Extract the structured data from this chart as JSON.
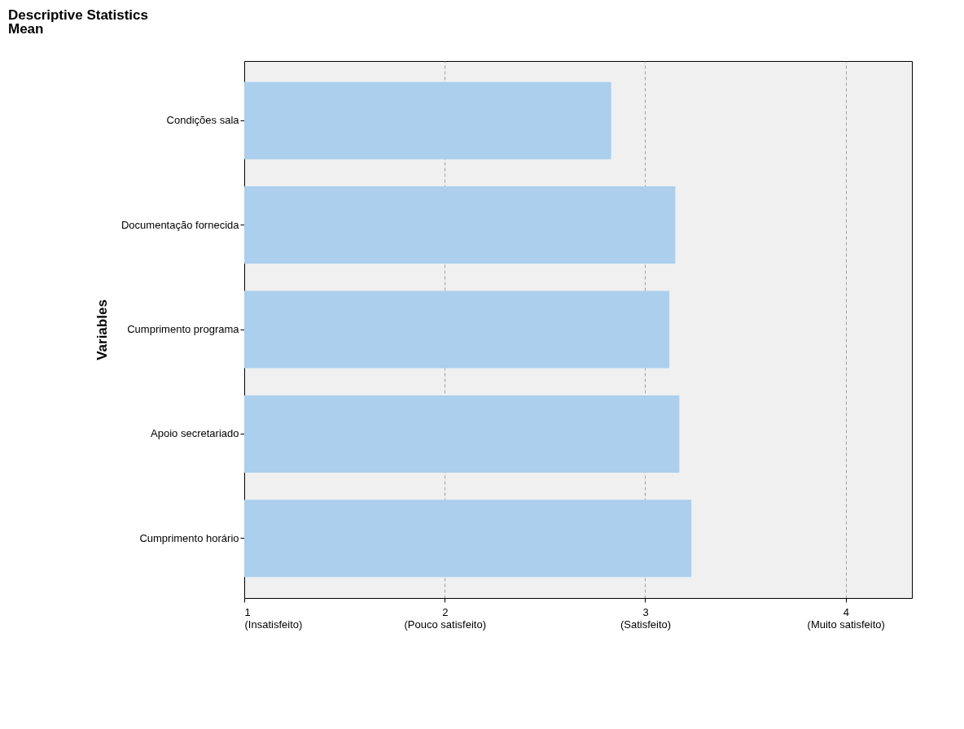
{
  "chart_data": {
    "type": "bar",
    "orientation": "horizontal",
    "title": "Descriptive Statistics",
    "subtitle": "Mean",
    "ylabel": "Variables",
    "categories": [
      "Condições sala",
      "Documentação fornecida",
      "Cumprimento programa",
      "Apoio secretariado",
      "Cumprimento horário"
    ],
    "values": [
      2.83,
      3.15,
      3.12,
      3.17,
      3.23
    ],
    "color": "#abcfed",
    "xlim": [
      1,
      4.33
    ],
    "xticks": [
      {
        "value": 1,
        "label": "1\n\n(Insatisfeito)"
      },
      {
        "value": 2,
        "label": "2\n\n(Pouco satisfeito)"
      },
      {
        "value": 3,
        "label": "3\n\n(Satisfeito)"
      },
      {
        "value": 4,
        "label": "4\n\n(Muito satisfeito)"
      }
    ],
    "grid": "x",
    "line_style": "dashed"
  }
}
